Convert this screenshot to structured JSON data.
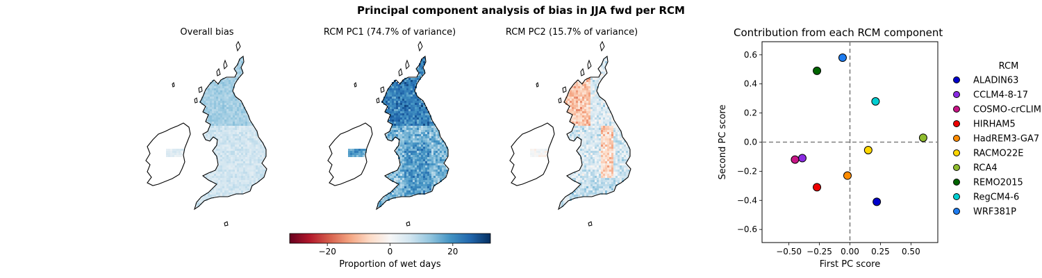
{
  "figure": {
    "title": "Principal component analysis of bias in JJA fwd per RCM"
  },
  "maps": [
    {
      "title": "Overall bias",
      "field": "overall"
    },
    {
      "title": "RCM PC1 (74.7% of variance)",
      "field": "pc1"
    },
    {
      "title": "RCM PC2 (15.7% of variance)",
      "field": "pc2"
    }
  ],
  "colorbar": {
    "label": "Proportion of wet days",
    "colormap": "RdBu",
    "vmin": -32,
    "vmax": 32,
    "ticks": [
      "−20",
      "0",
      "20"
    ],
    "tick_values": [
      -20,
      0,
      20
    ]
  },
  "chart_data": {
    "type": "scatter",
    "title": "Contribution from each RCM component",
    "xlabel": "First PC score",
    "ylabel": "Second PC score",
    "xlim": [
      -0.72,
      0.72
    ],
    "ylim": [
      -0.69,
      0.69
    ],
    "xticks": [
      -0.5,
      -0.25,
      0.0,
      0.25,
      0.5
    ],
    "xtick_labels": [
      "−0.50",
      "−0.25",
      "0.00",
      "0.25",
      "0.50"
    ],
    "yticks": [
      -0.6,
      -0.4,
      -0.2,
      0.0,
      0.2,
      0.4,
      0.6
    ],
    "ytick_labels": [
      "−0.6",
      "−0.4",
      "−0.2",
      "0.0",
      "0.2",
      "0.4",
      "0.6"
    ],
    "grid": false,
    "reference_lines": {
      "x": 0,
      "y": 0,
      "style": "dashed"
    },
    "legend_title": "RCM",
    "legend_position": "right-outside",
    "points": [
      {
        "name": "ALADIN63",
        "x": 0.22,
        "y": -0.41,
        "color": "#0000cc"
      },
      {
        "name": "CCLM4-8-17",
        "x": -0.39,
        "y": -0.11,
        "color": "#8a2be2"
      },
      {
        "name": "COSMO-crCLIM",
        "x": -0.45,
        "y": -0.12,
        "color": "#c71585"
      },
      {
        "name": "HIRHAM5",
        "x": -0.27,
        "y": -0.31,
        "color": "#ee0000"
      },
      {
        "name": "HadREM3-GA7",
        "x": -0.02,
        "y": -0.23,
        "color": "#ff8c00"
      },
      {
        "name": "RACMO22E",
        "x": 0.15,
        "y": -0.055,
        "color": "#ffd700"
      },
      {
        "name": "RCA4",
        "x": 0.6,
        "y": 0.03,
        "color": "#8fbc2e"
      },
      {
        "name": "REMO2015",
        "x": -0.27,
        "y": 0.49,
        "color": "#006400"
      },
      {
        "name": "RegCM4-6",
        "x": 0.21,
        "y": 0.28,
        "color": "#00ced1"
      },
      {
        "name": "WRF381P",
        "x": -0.06,
        "y": 0.58,
        "color": "#1e7cf0"
      }
    ]
  }
}
